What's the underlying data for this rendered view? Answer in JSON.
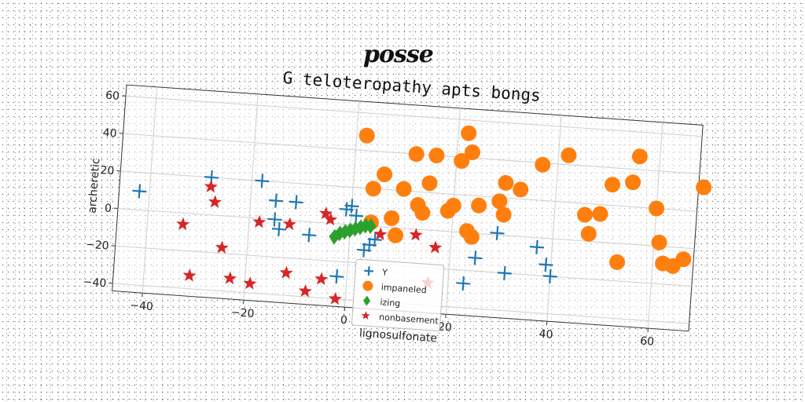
{
  "figure": {
    "title": "posse"
  },
  "chart_data": {
    "type": "scatter",
    "title": "G teloteropathy apts bongs",
    "xlabel": "lignosulfonate",
    "ylabel": "archeretic",
    "xlim": [
      -46,
      68
    ],
    "ylim": [
      -44,
      66
    ],
    "xticks": [
      -40,
      -20,
      0,
      20,
      40,
      60
    ],
    "yticks": [
      -40,
      -20,
      0,
      20,
      40,
      60
    ],
    "grid": true,
    "legend_position": "lower-center",
    "series": [
      {
        "name": "Y",
        "marker": "plus",
        "color": "#1f77b4",
        "points": [
          [
            -42,
            10
          ],
          [
            -28,
            20
          ],
          [
            -18,
            20
          ],
          [
            -15,
            10
          ],
          [
            -11,
            10
          ],
          [
            -15,
            0
          ],
          [
            -14,
            -5
          ],
          [
            -8,
            -7
          ],
          [
            -1,
            8
          ],
          [
            0,
            10
          ],
          [
            1,
            5
          ],
          [
            4,
            -10
          ],
          [
            3,
            -13
          ],
          [
            5,
            -7
          ],
          [
            -2,
            -28
          ],
          [
            23,
            -27
          ],
          [
            25,
            -13
          ],
          [
            29,
            1
          ],
          [
            31,
            -20
          ],
          [
            37,
            -5
          ],
          [
            39,
            -14
          ],
          [
            40,
            -20
          ]
        ]
      },
      {
        "name": "impaneled",
        "marker": "circle",
        "color": "#ff7f0e",
        "points": [
          [
            2,
            48
          ],
          [
            6,
            28
          ],
          [
            4,
            20
          ],
          [
            4,
            2
          ],
          [
            8,
            5
          ],
          [
            9,
            -4
          ],
          [
            10,
            21
          ],
          [
            12,
            40
          ],
          [
            13,
            13
          ],
          [
            14,
            9
          ],
          [
            15,
            25
          ],
          [
            16,
            40
          ],
          [
            19,
            11
          ],
          [
            20,
            14
          ],
          [
            21,
            38
          ],
          [
            22,
            53
          ],
          [
            23,
            43
          ],
          [
            23,
            1
          ],
          [
            24,
            -2
          ],
          [
            25,
            15
          ],
          [
            29,
            18
          ],
          [
            30,
            28
          ],
          [
            30,
            11
          ],
          [
            33,
            25
          ],
          [
            37,
            39
          ],
          [
            42,
            45
          ],
          [
            46,
            14
          ],
          [
            47,
            4
          ],
          [
            49,
            15
          ],
          [
            51,
            31
          ],
          [
            53,
            -10
          ],
          [
            55,
            33
          ],
          [
            56,
            47
          ],
          [
            60,
            20
          ],
          [
            61,
            2
          ],
          [
            62,
            -9
          ],
          [
            64,
            -10
          ],
          [
            66,
            -6
          ],
          [
            69,
            33
          ]
        ]
      },
      {
        "name": "izing",
        "marker": "diamond",
        "color": "#2ca02c",
        "points": [
          [
            -3,
            -7
          ],
          [
            -2,
            -5
          ],
          [
            -1,
            -4
          ],
          [
            0,
            -3
          ],
          [
            1,
            -2
          ],
          [
            2,
            -1
          ],
          [
            3,
            0
          ],
          [
            4,
            0
          ]
        ]
      },
      {
        "name": "nonbasement",
        "marker": "star",
        "color": "#d62728",
        "points": [
          [
            -33,
            -6
          ],
          [
            -28,
            15
          ],
          [
            -27,
            7
          ],
          [
            -25,
            -17
          ],
          [
            -31,
            -33
          ],
          [
            -23,
            -33
          ],
          [
            -19,
            -35
          ],
          [
            -18,
            -2
          ],
          [
            -12,
            -2
          ],
          [
            -12,
            -28
          ],
          [
            -8,
            -37
          ],
          [
            -5,
            5
          ],
          [
            -5,
            -30
          ],
          [
            -2,
            -40
          ],
          [
            -4,
            2
          ],
          [
            6,
            -4
          ],
          [
            13,
            -3
          ],
          [
            17,
            -9
          ],
          [
            16,
            -28
          ]
        ]
      }
    ]
  }
}
